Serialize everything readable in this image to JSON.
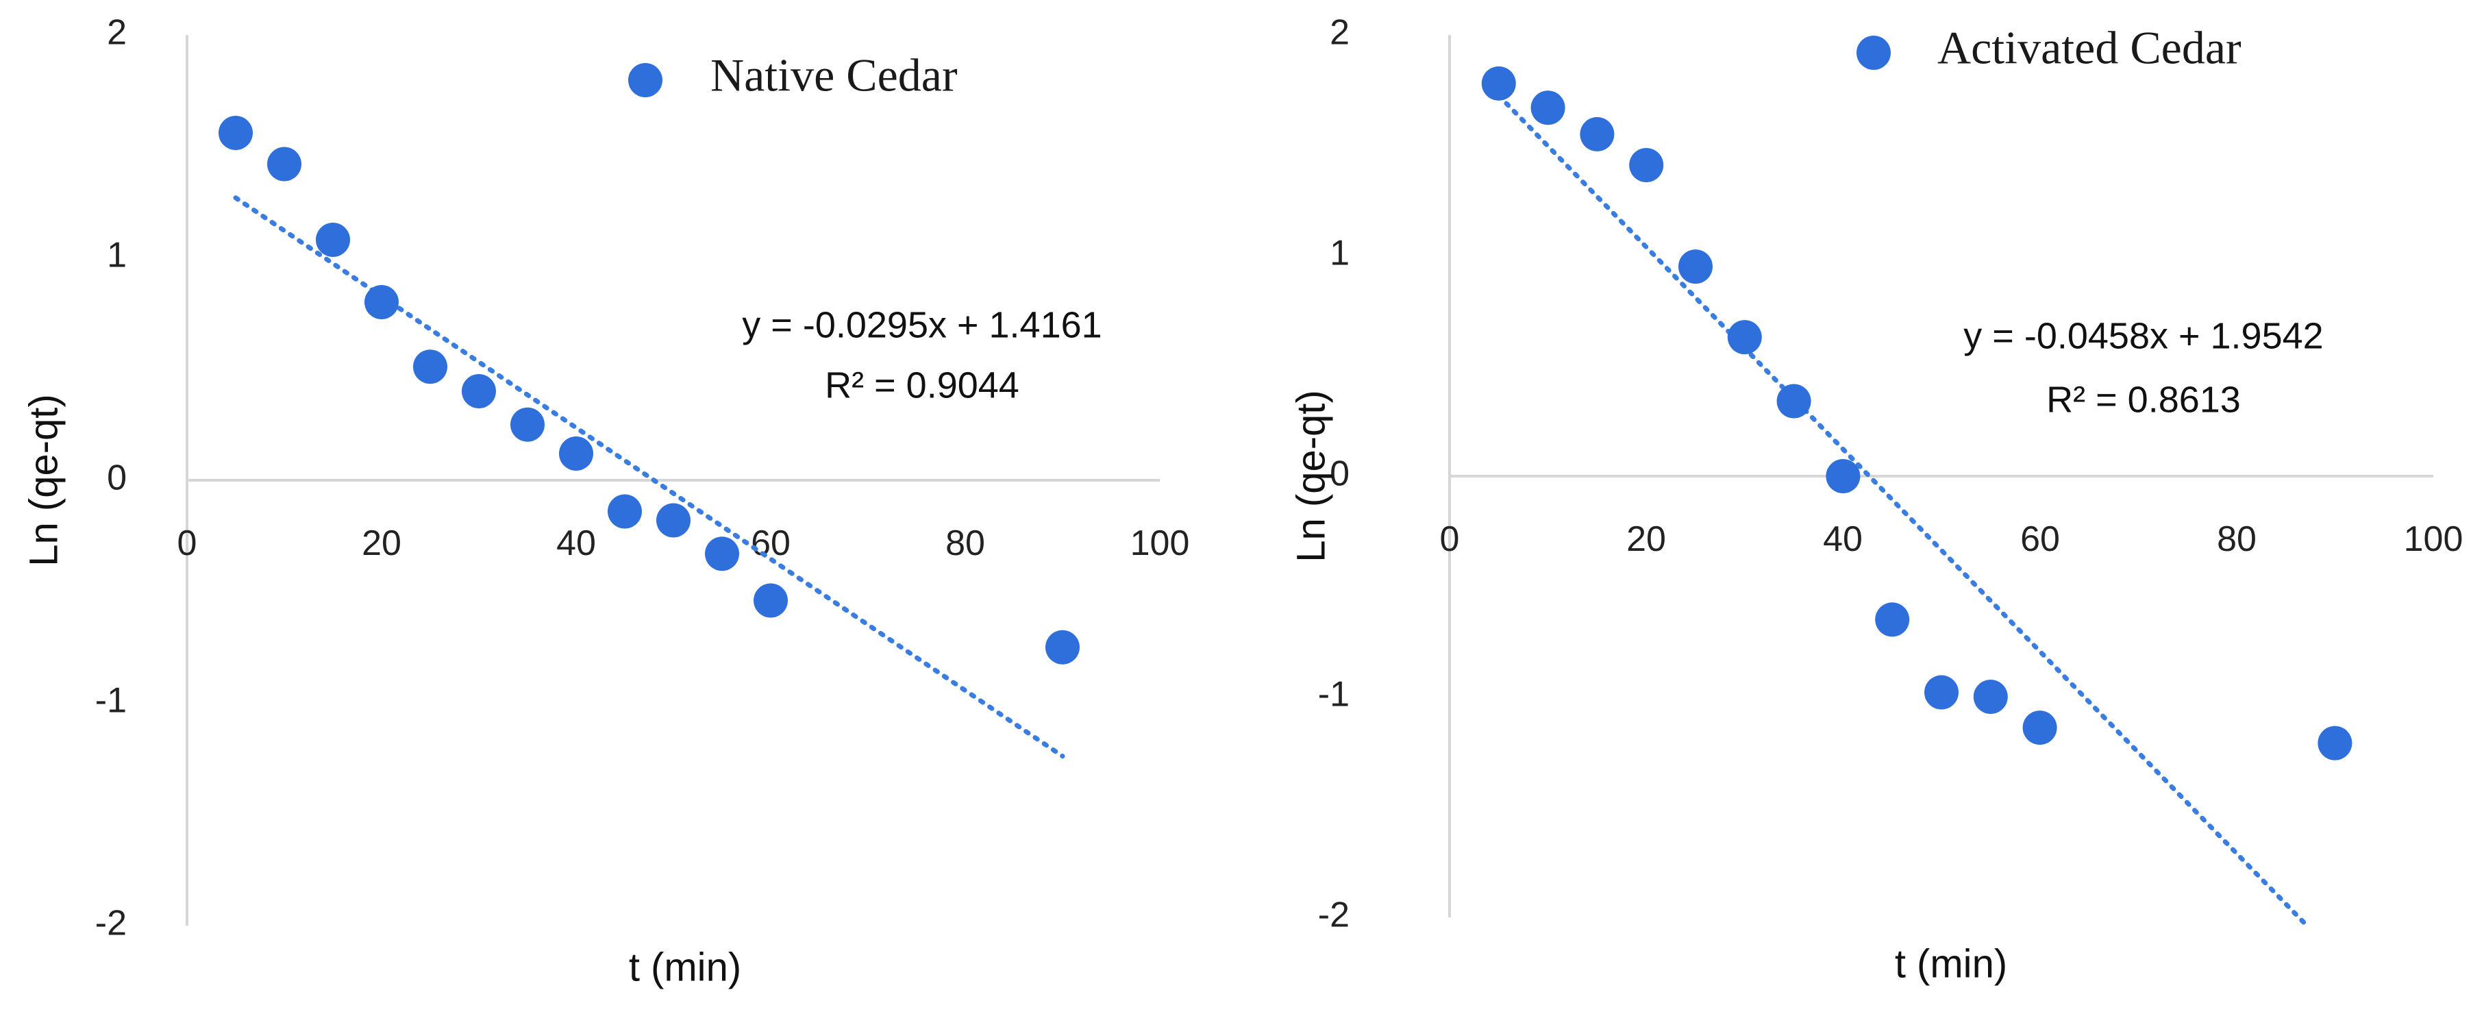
{
  "chart_data": [
    {
      "type": "scatter",
      "title": "",
      "legend": "Native Cedar",
      "xlabel": "t (min)",
      "ylabel": "Ln (qe-qt)",
      "xlim": [
        0,
        100
      ],
      "ylim": [
        -2,
        2
      ],
      "xticks": [
        0,
        20,
        40,
        60,
        80,
        100
      ],
      "yticks": [
        -2,
        -1,
        0,
        1,
        2
      ],
      "x": [
        5,
        10,
        15,
        20,
        25,
        30,
        35,
        40,
        45,
        50,
        55,
        60,
        90
      ],
      "y": [
        1.56,
        1.42,
        1.08,
        0.8,
        0.51,
        0.4,
        0.25,
        0.12,
        -0.14,
        -0.18,
        -0.33,
        -0.54,
        -0.75
      ],
      "trendline": {
        "slope": -0.0295,
        "intercept": 1.4161,
        "x_range": [
          5,
          90
        ]
      },
      "equation": "y = -0.0295x + 1.4161",
      "r2": "R² = 0.9044",
      "marker_color": "#2e6fdc",
      "line_color": "#3a7de0"
    },
    {
      "type": "scatter",
      "title": "",
      "legend": "Activated Cedar",
      "xlabel": "t (min)",
      "ylabel": "Ln (qe-qt)",
      "xlim": [
        0,
        100
      ],
      "ylim": [
        -2,
        2
      ],
      "xticks": [
        0,
        20,
        40,
        60,
        80,
        100
      ],
      "yticks": [
        -2,
        -1,
        0,
        1,
        2
      ],
      "x": [
        5,
        10,
        15,
        20,
        25,
        30,
        35,
        40,
        45,
        50,
        55,
        60,
        90
      ],
      "y": [
        1.78,
        1.67,
        1.55,
        1.41,
        0.95,
        0.63,
        0.34,
        0.0,
        -0.65,
        -0.98,
        -1.0,
        -1.14,
        -1.21
      ],
      "trendline": {
        "slope": -0.0458,
        "intercept": 1.9542,
        "x_range": [
          5,
          87
        ]
      },
      "equation": "y = -0.0458x + 1.9542",
      "r2": "R² = 0.8613",
      "marker_color": "#2e6fdc",
      "line_color": "#3a7de0"
    }
  ]
}
